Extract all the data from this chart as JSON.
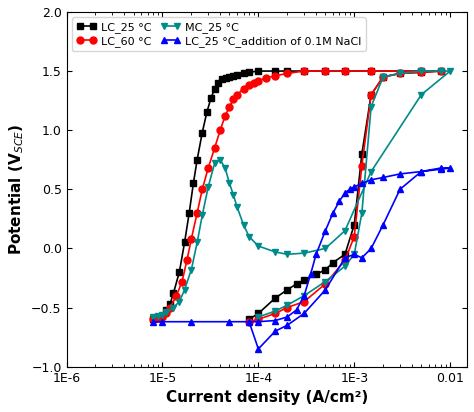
{
  "title": "",
  "xlabel": "Current density (A/cm²)",
  "ylabel": "Potential (V$_{SCE}$)",
  "ylim": [
    -1.0,
    2.0
  ],
  "series": {
    "LC_25": {
      "label": "LC_25 °C",
      "color": "black",
      "marker": "s",
      "x": [
        8e-06,
        9e-06,
        1e-05,
        1.1e-05,
        1.2e-05,
        1.3e-05,
        1.5e-05,
        1.7e-05,
        1.9e-05,
        2.1e-05,
        2.3e-05,
        2.6e-05,
        2.9e-05,
        3.2e-05,
        3.5e-05,
        3.8e-05,
        4.2e-05,
        4.6e-05,
        5e-05,
        5.5e-05,
        6e-05,
        7e-05,
        8e-05,
        0.0001,
        0.00015,
        0.0002,
        0.0003,
        0.0005,
        0.0008,
        0.0015,
        0.005,
        0.008,
        0.005,
        0.003,
        0.002,
        0.0015,
        0.0012,
        0.001,
        0.0008,
        0.0006,
        0.0005,
        0.0004,
        0.0003,
        0.00025,
        0.0002,
        0.00015,
        0.0001,
        8e-05
      ],
      "y": [
        -0.6,
        -0.59,
        -0.57,
        -0.52,
        -0.47,
        -0.38,
        -0.2,
        0.05,
        0.3,
        0.55,
        0.75,
        0.98,
        1.15,
        1.27,
        1.35,
        1.4,
        1.43,
        1.44,
        1.45,
        1.46,
        1.47,
        1.48,
        1.49,
        1.5,
        1.5,
        1.5,
        1.5,
        1.5,
        1.5,
        1.5,
        1.5,
        1.5,
        1.49,
        1.48,
        1.45,
        1.3,
        0.8,
        0.2,
        -0.05,
        -0.12,
        -0.18,
        -0.22,
        -0.27,
        -0.3,
        -0.35,
        -0.42,
        -0.55,
        -0.6
      ]
    },
    "LC_60": {
      "label": "LC_60 °C",
      "color": "red",
      "marker": "o",
      "x": [
        8e-06,
        9e-06,
        1e-05,
        1.1e-05,
        1.2e-05,
        1.4e-05,
        1.6e-05,
        1.8e-05,
        2e-05,
        2.3e-05,
        2.6e-05,
        3e-05,
        3.5e-05,
        4e-05,
        4.5e-05,
        5e-05,
        5.5e-05,
        6e-05,
        7e-05,
        8e-05,
        9e-05,
        0.0001,
        0.00012,
        0.00015,
        0.0002,
        0.0003,
        0.0005,
        0.0008,
        0.0015,
        0.005,
        0.008,
        0.005,
        0.003,
        0.002,
        0.0015,
        0.0012,
        0.001,
        0.0008,
        0.0005,
        0.0003,
        0.0002,
        0.00015,
        0.0001,
        8e-05
      ],
      "y": [
        -0.6,
        -0.59,
        -0.58,
        -0.55,
        -0.5,
        -0.4,
        -0.28,
        -0.1,
        0.08,
        0.3,
        0.5,
        0.68,
        0.85,
        1.0,
        1.12,
        1.2,
        1.26,
        1.3,
        1.35,
        1.38,
        1.4,
        1.42,
        1.44,
        1.46,
        1.48,
        1.5,
        1.5,
        1.5,
        1.5,
        1.5,
        1.5,
        1.49,
        1.48,
        1.45,
        1.3,
        0.7,
        0.1,
        -0.1,
        -0.3,
        -0.45,
        -0.5,
        -0.55,
        -0.6,
        -0.62
      ]
    },
    "MC_25": {
      "label": "MC_25 °C",
      "color": "#008B8B",
      "marker": "v",
      "x": [
        8e-06,
        9e-06,
        1e-05,
        1.1e-05,
        1.3e-05,
        1.5e-05,
        1.7e-05,
        2e-05,
        2.3e-05,
        2.6e-05,
        3e-05,
        3.5e-05,
        4e-05,
        4.5e-05,
        5e-05,
        5.5e-05,
        6e-05,
        7e-05,
        8e-05,
        0.0001,
        0.00015,
        0.0002,
        0.0003,
        0.0005,
        0.0008,
        0.0015,
        0.005,
        0.01,
        0.008,
        0.005,
        0.003,
        0.002,
        0.0015,
        0.0012,
        0.001,
        0.0008,
        0.0005,
        0.0003,
        0.0002,
        0.00015,
        0.0001
      ],
      "y": [
        -0.58,
        -0.57,
        -0.56,
        -0.54,
        -0.5,
        -0.45,
        -0.35,
        -0.18,
        0.05,
        0.28,
        0.52,
        0.72,
        0.75,
        0.68,
        0.55,
        0.45,
        0.35,
        0.2,
        0.1,
        0.02,
        -0.03,
        -0.05,
        -0.04,
        0.0,
        0.15,
        0.65,
        1.3,
        1.5,
        1.5,
        1.5,
        1.48,
        1.45,
        1.2,
        0.3,
        -0.05,
        -0.15,
        -0.28,
        -0.4,
        -0.48,
        -0.53,
        -0.58
      ]
    },
    "LC_NaCl": {
      "label": "LC_25 °C_addition of 0.1M NaCl",
      "color": "blue",
      "marker": "^",
      "x": [
        8e-06,
        1e-05,
        2e-05,
        5e-05,
        0.0001,
        0.00015,
        0.0002,
        0.00025,
        0.0003,
        0.00035,
        0.0004,
        0.0005,
        0.0006,
        0.0007,
        0.0008,
        0.0009,
        0.001,
        0.0012,
        0.0015,
        0.002,
        0.003,
        0.005,
        0.008,
        0.01,
        0.008,
        0.005,
        0.003,
        0.002,
        0.0015,
        0.0012,
        0.001,
        0.0008,
        0.0005,
        0.0003,
        0.0002,
        0.00015,
        0.0001,
        8e-05
      ],
      "y": [
        -0.62,
        -0.62,
        -0.62,
        -0.62,
        -0.62,
        -0.61,
        -0.58,
        -0.52,
        -0.4,
        -0.22,
        -0.05,
        0.15,
        0.3,
        0.4,
        0.47,
        0.5,
        0.52,
        0.55,
        0.58,
        0.6,
        0.63,
        0.65,
        0.67,
        0.68,
        0.68,
        0.65,
        0.5,
        0.2,
        0.0,
        -0.08,
        -0.05,
        -0.08,
        -0.35,
        -0.55,
        -0.65,
        -0.7,
        -0.85,
        -0.62
      ]
    }
  },
  "tick_fontsize": 9,
  "label_fontsize": 11,
  "background_color": "#ffffff"
}
